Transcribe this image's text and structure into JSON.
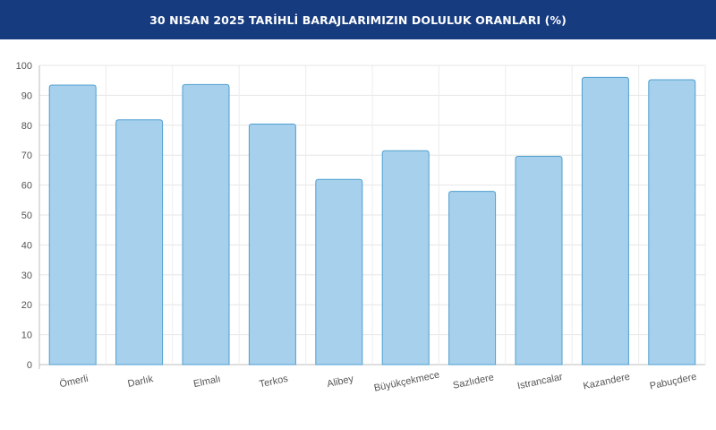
{
  "header": {
    "title": "30 NISAN 2025 TARİHLİ BARAJLARIMIZIN DOLULUK ORANLARI (%)",
    "background": "#163b7f"
  },
  "chart_data": {
    "type": "bar",
    "title": "30 NISAN 2025 TARİHLİ BARAJLARIMIZIN DOLULUK ORANLARI (%)",
    "xlabel": "",
    "ylabel": "",
    "categories": [
      "Ömerli",
      "Darlık",
      "Elmalı",
      "Terkos",
      "Alibey",
      "Büyükçekmece",
      "Sazlıdere",
      "Istrancalar",
      "Kazandere",
      "Pabuçdere"
    ],
    "values": [
      93.4,
      81.8,
      93.6,
      80.4,
      61.9,
      71.5,
      57.9,
      69.6,
      96.0,
      95.2
    ],
    "ylim": [
      0,
      100
    ],
    "yticks": [
      0,
      10,
      20,
      30,
      40,
      50,
      60,
      70,
      80,
      90,
      100
    ],
    "grid": true,
    "legend": "none",
    "bar_fill": "#a6d0eb",
    "bar_stroke": "#4f9fd0"
  }
}
